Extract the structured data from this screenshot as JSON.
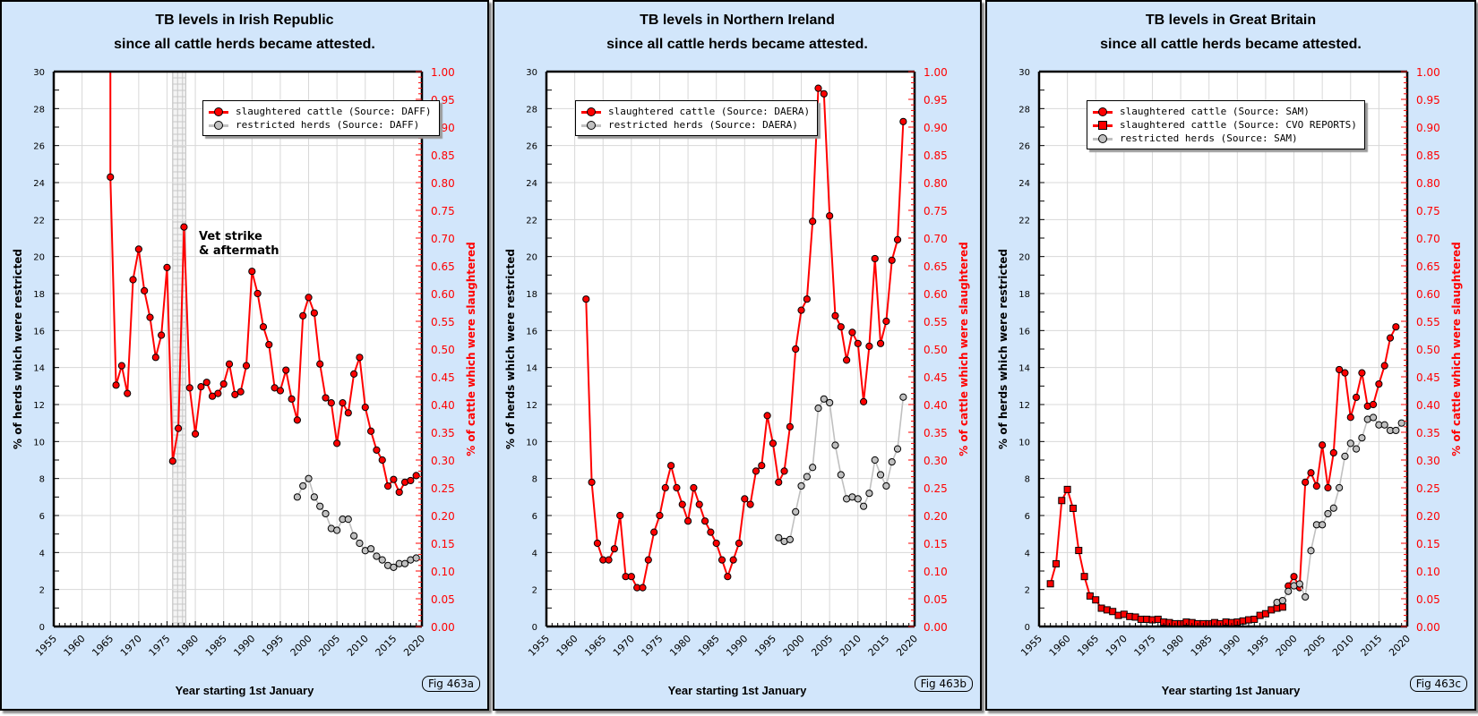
{
  "colors": {
    "panel_bg": "#d2e6fb",
    "slaughtered": "#ff0000",
    "restricted": "#c0c0c0",
    "right_axis": "#ff0000",
    "grid": "#d8d8d8"
  },
  "chart_data": [
    {
      "type": "line",
      "title": "TB levels in Irish Republic",
      "subtitle": "since all cattle herds became attested.",
      "xlabel": "Year starting 1st January",
      "ylabel": "% of herds which were restricted",
      "ylabel_right": "% of cattle which were slaughtered",
      "xlim": [
        1955,
        2020
      ],
      "ylim": [
        0,
        30
      ],
      "ylim_right": [
        0,
        1.0
      ],
      "x_ticks": [
        "1955",
        "1960",
        "1965",
        "1970",
        "1975",
        "1980",
        "1985",
        "1990",
        "1995",
        "2000",
        "2005",
        "2010",
        "2015",
        "2020"
      ],
      "y_ticks": [
        "0",
        "2",
        "4",
        "6",
        "8",
        "10",
        "12",
        "14",
        "16",
        "18",
        "20",
        "22",
        "24",
        "26",
        "28",
        "30"
      ],
      "y_ticks_right": [
        "0.00",
        "0.05",
        "0.10",
        "0.15",
        "0.20",
        "0.25",
        "0.30",
        "0.35",
        "0.40",
        "0.45",
        "0.50",
        "0.55",
        "0.60",
        "0.65",
        "0.70",
        "0.75",
        "0.80",
        "0.85",
        "0.90",
        "0.95",
        "1.00"
      ],
      "grid": true,
      "legend_position": "top-right",
      "fig_label": "Fig 463a",
      "annotation": {
        "line1": "Vet strike",
        "line2": "& aftermath",
        "shaded_years": [
          1976,
          1978
        ]
      },
      "series": [
        {
          "name": "slaughtered cattle (Source: DAFF)",
          "axis": "right",
          "marker": "circle",
          "color": "#ff0000",
          "lead_in": {
            "x": 1965,
            "y": 1.05
          },
          "x": [
            1965,
            1966,
            1967,
            1968,
            1969,
            1970,
            1971,
            1972,
            1973,
            1974,
            1975,
            1976,
            1977,
            1978,
            1979,
            1980,
            1981,
            1982,
            1983,
            1984,
            1985,
            1986,
            1987,
            1988,
            1989,
            1990,
            1991,
            1992,
            1993,
            1994,
            1995,
            1996,
            1997,
            1998,
            1999,
            2000,
            2001,
            2002,
            2003,
            2004,
            2005,
            2006,
            2007,
            2008,
            2009,
            2010,
            2011,
            2012,
            2013,
            2014,
            2015,
            2016,
            2017,
            2018,
            2019
          ],
          "y": [
            0.81,
            0.435,
            0.47,
            0.42,
            0.625,
            0.68,
            0.605,
            0.557,
            0.485,
            0.525,
            0.647,
            0.298,
            0.357,
            0.72,
            0.43,
            0.347,
            0.432,
            0.44,
            0.415,
            0.42,
            0.437,
            0.473,
            0.418,
            0.423,
            0.47,
            0.64,
            0.6,
            0.54,
            0.508,
            0.43,
            0.425,
            0.462,
            0.41,
            0.372,
            0.56,
            0.593,
            0.565,
            0.473,
            0.412,
            0.403,
            0.33,
            0.403,
            0.385,
            0.455,
            0.485,
            0.395,
            0.352,
            0.318,
            0.3,
            0.253,
            0.265,
            0.242,
            0.26,
            0.263,
            0.272
          ]
        },
        {
          "name": "restricted herds (Source: DAFF)",
          "axis": "left",
          "marker": "circle",
          "color": "#c0c0c0",
          "x": [
            1998,
            1999,
            2000,
            2001,
            2002,
            2003,
            2004,
            2005,
            2006,
            2007,
            2008,
            2009,
            2010,
            2011,
            2012,
            2013,
            2014,
            2015,
            2016,
            2017,
            2018,
            2019
          ],
          "y": [
            7.0,
            7.6,
            8.0,
            7.0,
            6.5,
            6.1,
            5.3,
            5.2,
            5.8,
            5.8,
            4.9,
            4.5,
            4.1,
            4.2,
            3.8,
            3.6,
            3.3,
            3.2,
            3.4,
            3.4,
            3.6,
            3.7
          ]
        }
      ]
    },
    {
      "type": "line",
      "title": "TB levels in Northern Ireland",
      "subtitle": "since all cattle herds became attested.",
      "xlabel": "Year starting 1st January",
      "ylabel": "% of herds which were restricted",
      "ylabel_right": "% of cattle which were slaughtered",
      "xlim": [
        1955,
        2020
      ],
      "ylim": [
        0,
        30
      ],
      "ylim_right": [
        0,
        1.0
      ],
      "x_ticks": [
        "1955",
        "1960",
        "1965",
        "1970",
        "1975",
        "1980",
        "1985",
        "1990",
        "1995",
        "2000",
        "2005",
        "2010",
        "2015",
        "2020"
      ],
      "y_ticks": [
        "0",
        "2",
        "4",
        "6",
        "8",
        "10",
        "12",
        "14",
        "16",
        "18",
        "20",
        "22",
        "24",
        "26",
        "28",
        "30"
      ],
      "y_ticks_right": [
        "0.00",
        "0.05",
        "0.10",
        "0.15",
        "0.20",
        "0.25",
        "0.30",
        "0.35",
        "0.40",
        "0.45",
        "0.50",
        "0.55",
        "0.60",
        "0.65",
        "0.70",
        "0.75",
        "0.80",
        "0.85",
        "0.90",
        "0.95",
        "1.00"
      ],
      "grid": true,
      "legend_position": "top-left",
      "fig_label": "Fig 463b",
      "series": [
        {
          "name": "slaughtered cattle (Source: DAERA)",
          "axis": "right",
          "marker": "circle",
          "color": "#ff0000",
          "x": [
            1962,
            1963,
            1964,
            1965,
            1966,
            1967,
            1968,
            1969,
            1970,
            1971,
            1972,
            1973,
            1974,
            1975,
            1976,
            1977,
            1978,
            1979,
            1980,
            1981,
            1982,
            1983,
            1984,
            1985,
            1986,
            1987,
            1988,
            1989,
            1990,
            1991,
            1992,
            1993,
            1994,
            1995,
            1996,
            1997,
            1998,
            1999,
            2000,
            2001,
            2002,
            2003,
            2004,
            2005,
            2006,
            2007,
            2008,
            2009,
            2010,
            2011,
            2012,
            2013,
            2014,
            2015,
            2016,
            2017,
            2018
          ],
          "y": [
            0.59,
            0.26,
            0.15,
            0.12,
            0.12,
            0.14,
            0.2,
            0.09,
            0.09,
            0.07,
            0.07,
            0.12,
            0.17,
            0.2,
            0.25,
            0.29,
            0.25,
            0.22,
            0.19,
            0.25,
            0.22,
            0.19,
            0.17,
            0.15,
            0.12,
            0.09,
            0.12,
            0.15,
            0.23,
            0.22,
            0.28,
            0.29,
            0.38,
            0.33,
            0.26,
            0.28,
            0.36,
            0.5,
            0.57,
            0.59,
            0.73,
            0.97,
            0.96,
            0.74,
            0.56,
            0.54,
            0.48,
            0.53,
            0.51,
            0.405,
            0.505,
            0.663,
            0.51,
            0.55,
            0.66,
            0.697,
            0.91
          ]
        },
        {
          "name": "restricted herds (Source: DAERA)",
          "axis": "left",
          "marker": "circle",
          "color": "#c0c0c0",
          "x": [
            1996,
            1997,
            1998,
            1999,
            2000,
            2001,
            2002,
            2003,
            2004,
            2005,
            2006,
            2007,
            2008,
            2009,
            2010,
            2011,
            2012,
            2013,
            2014,
            2015,
            2016,
            2017,
            2018
          ],
          "y": [
            4.8,
            4.6,
            4.7,
            6.2,
            7.6,
            8.1,
            8.6,
            11.8,
            12.3,
            12.1,
            9.8,
            8.2,
            6.9,
            7.0,
            6.9,
            6.5,
            7.2,
            9.0,
            8.2,
            7.6,
            8.9,
            9.6,
            12.4
          ]
        }
      ]
    },
    {
      "type": "line",
      "title": "TB levels in Great Britain",
      "subtitle": "since all cattle herds became attested.",
      "xlabel": "Year starting 1st January",
      "ylabel": "% of herds which were restricted",
      "ylabel_right": "% of cattle which were slaughtered",
      "xlim": [
        1955,
        2020
      ],
      "ylim": [
        0,
        30
      ],
      "ylim_right": [
        0,
        1.0
      ],
      "x_ticks": [
        "1955",
        "1960",
        "1965",
        "1970",
        "1975",
        "1980",
        "1985",
        "1990",
        "1995",
        "2000",
        "2005",
        "2010",
        "2015",
        "2020"
      ],
      "y_ticks": [
        "0",
        "2",
        "4",
        "6",
        "8",
        "10",
        "12",
        "14",
        "16",
        "18",
        "20",
        "22",
        "24",
        "26",
        "28",
        "30"
      ],
      "y_ticks_right": [
        "0.00",
        "0.05",
        "0.10",
        "0.15",
        "0.20",
        "0.25",
        "0.30",
        "0.35",
        "0.40",
        "0.45",
        "0.50",
        "0.55",
        "0.60",
        "0.65",
        "0.70",
        "0.75",
        "0.80",
        "0.85",
        "0.90",
        "0.95",
        "1.00"
      ],
      "grid": true,
      "legend_position": "top-left",
      "fig_label": "Fig 463c",
      "series": [
        {
          "name": "slaughtered cattle (Source: SAM)",
          "axis": "right",
          "marker": "circle",
          "color": "#ff0000",
          "x": [
            1999,
            2000,
            2001,
            2002,
            2003,
            2004,
            2005,
            2006,
            2007,
            2008,
            2009,
            2010,
            2011,
            2012,
            2013,
            2014,
            2015,
            2016,
            2017,
            2018
          ],
          "y": [
            0.073,
            0.09,
            0.07,
            0.26,
            0.277,
            0.253,
            0.327,
            0.25,
            0.313,
            0.463,
            0.457,
            0.377,
            0.413,
            0.457,
            0.397,
            0.4,
            0.437,
            0.47,
            0.52,
            0.54
          ]
        },
        {
          "name": "slaughtered cattle (Source: CVO REPORTS)",
          "axis": "right",
          "marker": "square",
          "color": "#ff0000",
          "x": [
            1957,
            1958,
            1959,
            1960,
            1961,
            1962,
            1963,
            1964,
            1965,
            1966,
            1967,
            1968,
            1969,
            1970,
            1971,
            1972,
            1973,
            1974,
            1975,
            1976,
            1977,
            1978,
            1979,
            1980,
            1981,
            1982,
            1983,
            1984,
            1985,
            1986,
            1987,
            1988,
            1989,
            1990,
            1991,
            1992,
            1993,
            1994,
            1995,
            1996,
            1997,
            1998
          ],
          "y": [
            0.077,
            0.113,
            0.227,
            0.247,
            0.213,
            0.137,
            0.09,
            0.055,
            0.048,
            0.033,
            0.03,
            0.027,
            0.02,
            0.022,
            0.018,
            0.017,
            0.013,
            0.013,
            0.012,
            0.013,
            0.008,
            0.007,
            0.005,
            0.005,
            0.008,
            0.007,
            0.005,
            0.005,
            0.005,
            0.007,
            0.005,
            0.008,
            0.007,
            0.008,
            0.01,
            0.012,
            0.013,
            0.02,
            0.023,
            0.03,
            0.033,
            0.035
          ]
        },
        {
          "name": "restricted herds (Source: SAM)",
          "axis": "left",
          "marker": "circle",
          "color": "#c0c0c0",
          "x": [
            1997,
            1998,
            1999,
            2000,
            2001,
            2002,
            2003,
            2004,
            2005,
            2006,
            2007,
            2008,
            2009,
            2010,
            2011,
            2012,
            2013,
            2014,
            2015,
            2016,
            2017,
            2018,
            2019
          ],
          "y": [
            1.3,
            1.4,
            1.9,
            2.2,
            2.3,
            1.6,
            4.1,
            5.5,
            5.5,
            6.1,
            6.4,
            7.5,
            9.2,
            9.9,
            9.6,
            10.2,
            11.2,
            11.3,
            10.9,
            10.9,
            10.6,
            10.6,
            11.0
          ]
        }
      ]
    }
  ]
}
